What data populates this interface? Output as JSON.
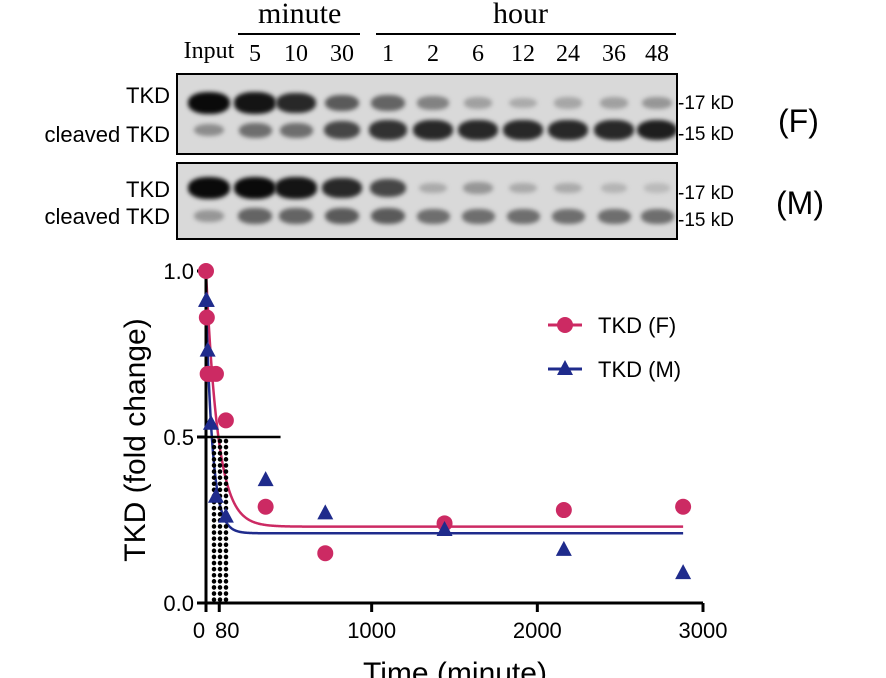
{
  "blot": {
    "group_minute": "minute",
    "group_hour": "hour",
    "lanes": [
      "Input",
      "5",
      "10",
      "30",
      "1",
      "2",
      "6",
      "12",
      "24",
      "36",
      "48"
    ],
    "panels": [
      {
        "label": "(F)",
        "rows": [
          "TKD",
          "cleaved TKD"
        ],
        "markers": [
          "17 kD",
          "15 kD"
        ],
        "upper_intensity": [
          1.0,
          0.95,
          0.85,
          0.6,
          0.55,
          0.4,
          0.25,
          0.2,
          0.22,
          0.25,
          0.3
        ],
        "lower_intensity": [
          0.35,
          0.5,
          0.5,
          0.7,
          0.8,
          0.85,
          0.85,
          0.85,
          0.85,
          0.85,
          0.9
        ]
      },
      {
        "label": "(M)",
        "rows": [
          "TKD",
          "cleaved TKD"
        ],
        "markers": [
          "17 kD",
          "15 kD"
        ],
        "upper_intensity": [
          1.0,
          1.0,
          0.95,
          0.85,
          0.7,
          0.2,
          0.3,
          0.2,
          0.2,
          0.15,
          0.12
        ],
        "lower_intensity": [
          0.3,
          0.55,
          0.55,
          0.6,
          0.6,
          0.5,
          0.5,
          0.5,
          0.5,
          0.5,
          0.5
        ]
      }
    ]
  },
  "chart_data": {
    "type": "scatter",
    "xlabel": "Time (minute)",
    "ylabel": "TKD (fold change)",
    "xlim": [
      0,
      3000
    ],
    "ylim": [
      0,
      1.0
    ],
    "xticks": [
      0,
      80,
      1000,
      2000,
      3000
    ],
    "yticks": [
      0.0,
      0.5,
      1.0
    ],
    "xtick_labels": [
      "0",
      "80",
      "1000",
      "2000",
      "3000"
    ],
    "ytick_labels": [
      "0.0",
      "0.5",
      "1.0"
    ],
    "legend_position": "top-right",
    "half_line": {
      "y": 0.5,
      "x_end": 450
    },
    "series": [
      {
        "name": "TKD (F)",
        "marker": "circle",
        "color": "#cc2a63",
        "x": [
          0,
          5,
          10,
          30,
          60,
          120,
          360,
          720,
          1440,
          2160,
          2880
        ],
        "y": [
          1.0,
          0.86,
          0.69,
          0.69,
          0.69,
          0.55,
          0.29,
          0.15,
          0.24,
          0.28,
          0.29
        ],
        "fit": {
          "plateau": 0.23,
          "k": 0.014
        }
      },
      {
        "name": "TKD (M)",
        "marker": "triangle",
        "color": "#1f2b8c",
        "x": [
          0,
          5,
          10,
          30,
          60,
          120,
          360,
          720,
          1440,
          2160,
          2880
        ],
        "y": [
          0.91,
          0.91,
          0.76,
          0.54,
          0.32,
          0.26,
          0.37,
          0.27,
          0.22,
          0.16,
          0.09
        ],
        "fit": {
          "plateau": 0.21,
          "k": 0.025
        }
      }
    ]
  }
}
